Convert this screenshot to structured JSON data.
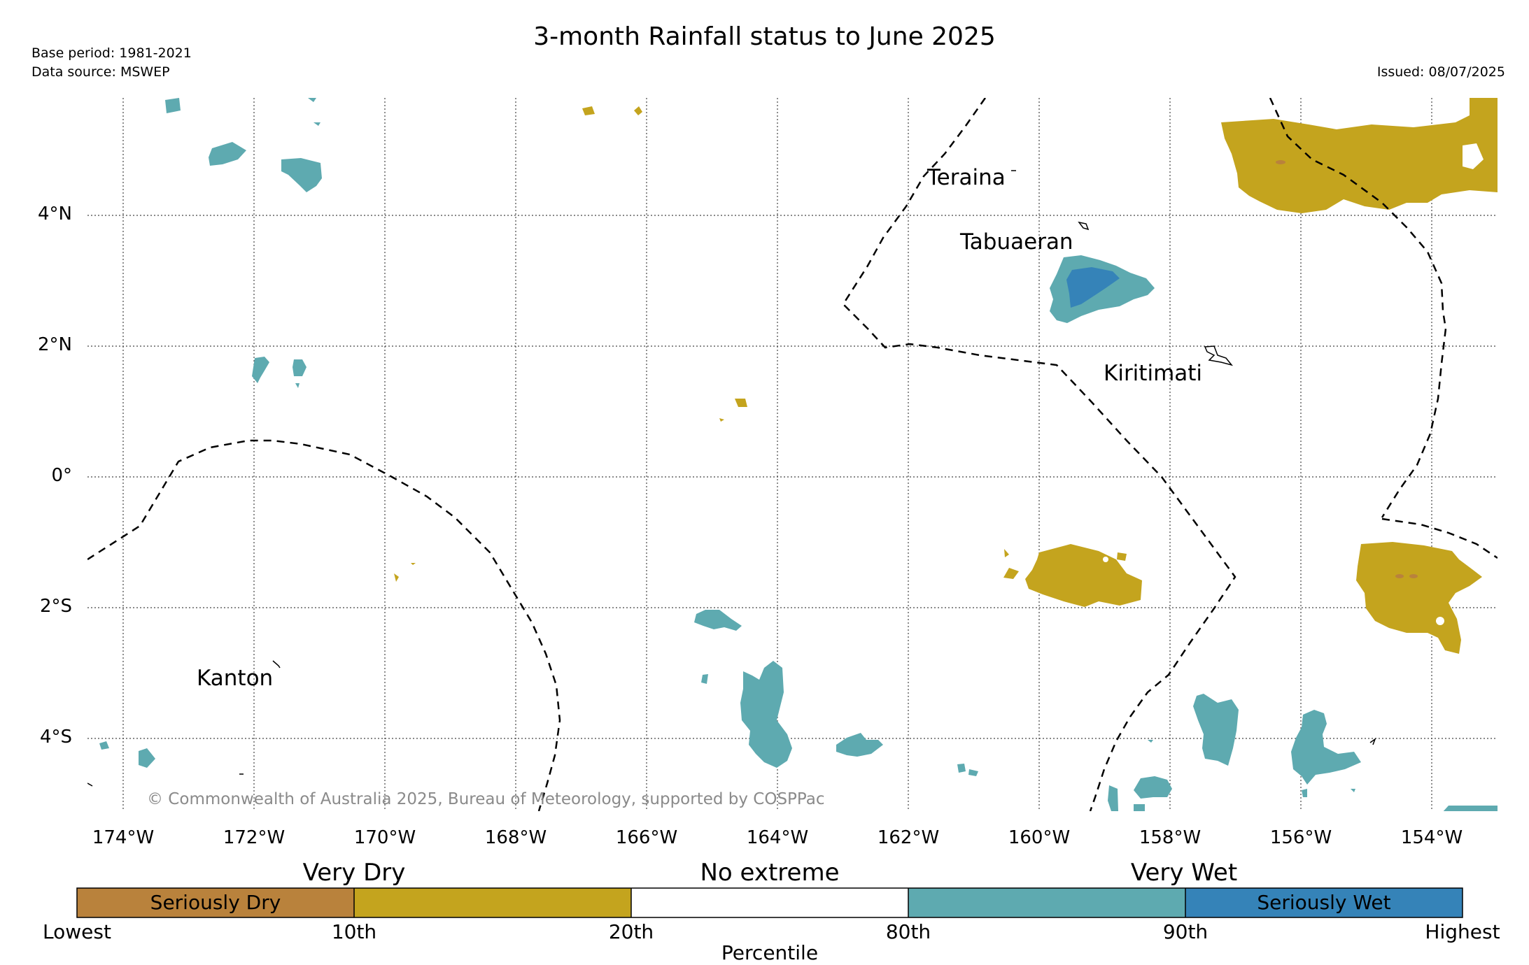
{
  "title": "3-month Rainfall status to June 2025",
  "meta": {
    "base_period": "Base period: 1981-2021",
    "data_source": "Data source: MSWEP",
    "issued": "Issued: 08/07/2025"
  },
  "map": {
    "x_ticks": [
      "174°W",
      "172°W",
      "170°W",
      "168°W",
      "166°W",
      "164°W",
      "162°W",
      "160°W",
      "158°W",
      "156°W",
      "154°W"
    ],
    "y_ticks": [
      "4°N",
      "2°N",
      "0°",
      "2°S",
      "4°S"
    ],
    "places": {
      "teraina": "Teraina",
      "tabuaeran": "Tabuaeran",
      "kiritimati": "Kiritimati",
      "kanton": "Kanton"
    },
    "copyright": "© Commonwealth of Australia 2025, Bureau of Meteorology, supported by COSPPac"
  },
  "colorbar": {
    "groups": [
      "Very Dry",
      "No extreme",
      "Very Wet"
    ],
    "inner_labels": [
      "Seriously Dry",
      "Seriously Wet"
    ],
    "percentiles": [
      "Lowest",
      "10th",
      "20th",
      "80th",
      "90th",
      "Highest"
    ],
    "axis_label": "Percentile",
    "colors": {
      "seriously_dry": "#b9823c",
      "very_dry": "#c4a41e",
      "no_extreme": "#ffffff",
      "very_wet": "#5eaab0",
      "seriously_wet": "#3583b8"
    }
  }
}
